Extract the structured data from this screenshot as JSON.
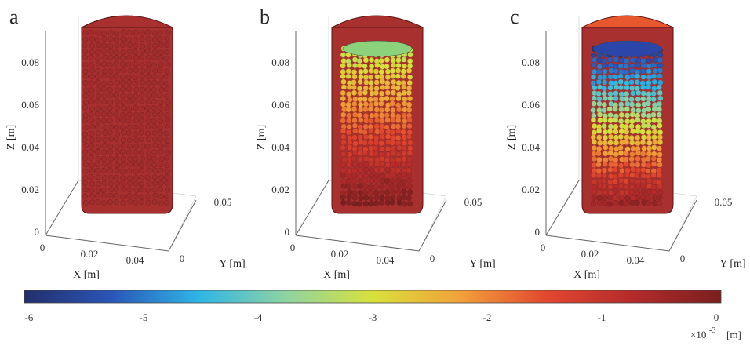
{
  "panels": [
    {
      "letter": "a",
      "style": "uniform",
      "top_color": "#b03a3a"
    },
    {
      "letter": "b",
      "style": "gradient_b",
      "top_color": "#8cd27a"
    },
    {
      "letter": "c",
      "style": "gradient_c",
      "top_color": "#2b46a8"
    }
  ],
  "axes": {
    "z_label": "Z [m]",
    "x_label": "X [m]",
    "y_label": "Y [m]",
    "z_ticks": [
      "0",
      "0.02",
      "0.04",
      "0.06",
      "0.08"
    ],
    "x_ticks": [
      "0",
      "0.02",
      "0.04"
    ],
    "y_ticks": [
      "0",
      "0.05"
    ]
  },
  "colorbar": {
    "ticks": [
      "-6",
      "-5",
      "-4",
      "-3",
      "-2",
      "-1",
      "0"
    ],
    "unit_scale": "×10",
    "unit_exp": "-3",
    "unit": "[m]",
    "colors": [
      "#232e6b",
      "#2a56b8",
      "#2fb5e6",
      "#8ed3a2",
      "#d8e13c",
      "#f2a13a",
      "#e3472f",
      "#b32a2a",
      "#7a1f1f"
    ]
  }
}
